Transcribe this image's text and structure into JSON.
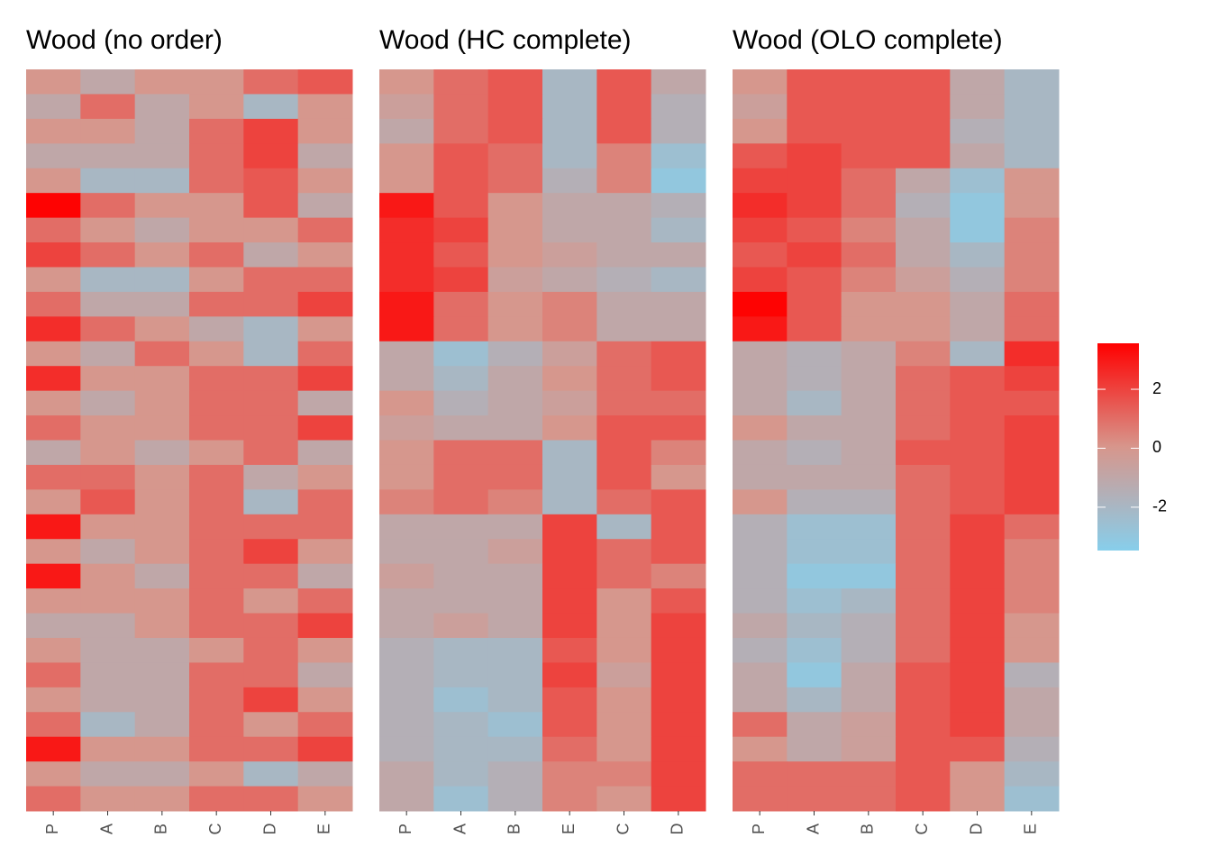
{
  "chart_data": [
    {
      "type": "heatmap",
      "title": "Wood (no order)",
      "x": [
        "P",
        "A",
        "B",
        "C",
        "D",
        "E"
      ],
      "values": [
        [
          0,
          -1,
          0,
          0,
          1,
          1.5
        ],
        [
          -1,
          1,
          -1,
          0,
          -2,
          0
        ],
        [
          0,
          0,
          -1,
          1,
          2,
          0
        ],
        [
          -1,
          -1,
          -1,
          1,
          2,
          -1
        ],
        [
          0,
          -2,
          -2,
          1,
          1.5,
          0
        ],
        [
          3.5,
          1,
          0,
          0,
          1.5,
          -1
        ],
        [
          1,
          0,
          -1,
          0,
          0,
          1
        ],
        [
          2,
          1,
          0,
          1,
          -1,
          0
        ],
        [
          0,
          -2,
          -2,
          0,
          1,
          1
        ],
        [
          1,
          -1,
          -1,
          1,
          1,
          2
        ],
        [
          2.5,
          1,
          0,
          -1,
          -2,
          0
        ],
        [
          0,
          -1,
          1,
          0,
          -2,
          1
        ],
        [
          2.5,
          0,
          0,
          1,
          1,
          2
        ],
        [
          0,
          -1,
          0,
          1,
          1,
          -1
        ],
        [
          1,
          0,
          0,
          1,
          1,
          2
        ],
        [
          -1,
          0,
          -1,
          0,
          1,
          -1
        ],
        [
          1,
          1,
          0,
          1,
          -1,
          0
        ],
        [
          0,
          1.5,
          0,
          1,
          -2,
          1
        ],
        [
          3,
          0,
          0,
          1,
          1,
          1
        ],
        [
          0,
          -1,
          0,
          1,
          2,
          0
        ],
        [
          3,
          0,
          -1,
          1,
          1,
          -1
        ],
        [
          0,
          0,
          0,
          1,
          0,
          1
        ],
        [
          -1,
          -1,
          0,
          1,
          1,
          2
        ],
        [
          0,
          -1,
          -1,
          0,
          1,
          0
        ],
        [
          1,
          -1,
          -1,
          1,
          1,
          -1
        ],
        [
          0,
          -1,
          -1,
          1,
          2,
          0
        ],
        [
          1,
          -2,
          -1,
          1,
          0,
          1
        ],
        [
          3,
          0,
          0,
          1,
          1,
          2
        ],
        [
          0,
          -1,
          -1,
          0,
          -2,
          -1
        ],
        [
          1,
          0,
          0,
          1,
          1,
          0
        ]
      ]
    },
    {
      "type": "heatmap",
      "title": "Wood (HC complete)",
      "x": [
        "P",
        "A",
        "B",
        "E",
        "C",
        "D"
      ],
      "values": [
        [
          0,
          1,
          1.5,
          -2,
          1.5,
          -1
        ],
        [
          -0.5,
          1,
          1.5,
          -2,
          1.5,
          -1.5
        ],
        [
          -1,
          1,
          1.5,
          -2,
          1.5,
          -1.5
        ],
        [
          0,
          1.5,
          1,
          -2,
          0.5,
          -2.5
        ],
        [
          0,
          1.5,
          1,
          -1.5,
          0.5,
          -3
        ],
        [
          3,
          1.5,
          0,
          -1,
          -1,
          -1.5
        ],
        [
          2.5,
          2,
          0,
          -1,
          -1,
          -2
        ],
        [
          2.5,
          1.5,
          0,
          -0.5,
          -1,
          -1
        ],
        [
          2.5,
          2,
          -0.5,
          -1,
          -1.5,
          -2
        ],
        [
          3,
          1,
          0,
          0.5,
          -1,
          -1
        ],
        [
          3,
          1,
          0,
          0.5,
          -1,
          -1
        ],
        [
          -1,
          -2.5,
          -1.5,
          -0.5,
          1,
          1.5
        ],
        [
          -1,
          -2,
          -1,
          0,
          1,
          1.5
        ],
        [
          0,
          -1.5,
          -1,
          -0.5,
          1,
          1
        ],
        [
          -0.5,
          -1,
          -1,
          0,
          1.5,
          1.5
        ],
        [
          0,
          1,
          1,
          -2,
          1.5,
          0.5
        ],
        [
          0,
          1,
          1,
          -2,
          1.5,
          0
        ],
        [
          0.5,
          1,
          0.5,
          -2,
          1,
          1.5
        ],
        [
          -1,
          -1,
          -1,
          2,
          -2,
          1.5
        ],
        [
          -1,
          -1,
          -0.5,
          2,
          1,
          1.5
        ],
        [
          -0.5,
          -1,
          -1,
          2,
          1,
          0.5
        ],
        [
          -1,
          -1,
          -1,
          2,
          0,
          1.5
        ],
        [
          -1,
          -0.5,
          -1,
          2,
          0,
          2
        ],
        [
          -1.5,
          -2,
          -2,
          1.5,
          0,
          2
        ],
        [
          -1.5,
          -2,
          -2,
          2,
          -0.5,
          2
        ],
        [
          -1.5,
          -2.5,
          -2,
          1.5,
          0,
          2
        ],
        [
          -1.5,
          -2,
          -2.5,
          1.5,
          0,
          2
        ],
        [
          -1.5,
          -2,
          -2,
          1,
          0,
          2
        ],
        [
          -1,
          -2,
          -1.5,
          0.5,
          0.5,
          2
        ],
        [
          -1,
          -2.5,
          -1.5,
          0.5,
          0,
          2
        ]
      ]
    },
    {
      "type": "heatmap",
      "title": "Wood (OLO complete)",
      "x": [
        "P",
        "A",
        "B",
        "C",
        "D",
        "E"
      ],
      "values": [
        [
          0,
          1.5,
          1.5,
          1.5,
          -1,
          -2
        ],
        [
          -0.5,
          1.5,
          1.5,
          1.5,
          -1,
          -2
        ],
        [
          0,
          1.5,
          1.5,
          1.5,
          -1.5,
          -2
        ],
        [
          1.5,
          2,
          1.5,
          1.5,
          -1,
          -2
        ],
        [
          2,
          2,
          1,
          -1,
          -2.5,
          0
        ],
        [
          2.5,
          2,
          1,
          -1.5,
          -3,
          0
        ],
        [
          2,
          1.5,
          0.5,
          -1,
          -3,
          0.5
        ],
        [
          1.5,
          2,
          1,
          -1,
          -2,
          0.5
        ],
        [
          2,
          1.5,
          0.5,
          -0.5,
          -1.5,
          0.5
        ],
        [
          3.5,
          1.5,
          0,
          0,
          -1,
          1
        ],
        [
          3,
          1.5,
          0,
          0,
          -1,
          1
        ],
        [
          -1,
          -1.5,
          -1,
          0.5,
          -2,
          2.5
        ],
        [
          -1,
          -1.5,
          -1,
          1,
          1.5,
          2
        ],
        [
          -1,
          -2,
          -1,
          1,
          1.5,
          1.5
        ],
        [
          0,
          -1,
          -1,
          1,
          1.5,
          2
        ],
        [
          -1,
          -1.5,
          -1,
          1.5,
          1.5,
          2
        ],
        [
          -1,
          -1,
          -1,
          1,
          1.5,
          2
        ],
        [
          0,
          -1.5,
          -1.5,
          1,
          1.5,
          2
        ],
        [
          -1.5,
          -2.5,
          -2.5,
          1,
          2,
          1
        ],
        [
          -1.5,
          -2.5,
          -2.5,
          1,
          2,
          0.5
        ],
        [
          -1.5,
          -3,
          -3,
          1,
          2,
          0.5
        ],
        [
          -1.5,
          -2.5,
          -2,
          1,
          2,
          0.5
        ],
        [
          -1,
          -2,
          -1.5,
          1,
          2,
          0
        ],
        [
          -1.5,
          -2.5,
          -1.5,
          1,
          2,
          0
        ],
        [
          -1,
          -3,
          -1,
          1.5,
          2,
          -1.5
        ],
        [
          -1,
          -2,
          -1,
          1.5,
          2,
          -1
        ],
        [
          1,
          -1,
          -0.5,
          1.5,
          2,
          -1
        ],
        [
          0,
          -1,
          -0.5,
          1.5,
          1.5,
          -1.5
        ],
        [
          1,
          1,
          1,
          1.5,
          0,
          -2
        ],
        [
          1,
          1,
          1,
          1.5,
          0,
          -2.5
        ]
      ]
    }
  ],
  "colorbar": {
    "zlim": [
      -3.47,
      3.56
    ],
    "ticks": [
      2,
      0,
      -2
    ],
    "colors": [
      "#87ceeb",
      "#d7968c",
      "#ff0000"
    ]
  }
}
